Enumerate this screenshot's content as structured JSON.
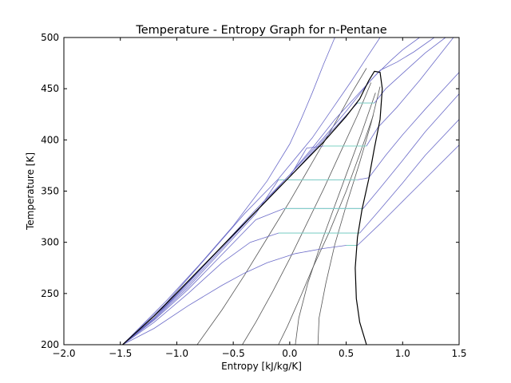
{
  "chart_data": {
    "type": "line",
    "title": "Temperature - Entropy Graph for n-Pentane",
    "xlabel": "Entropy [kJ/kg/K]",
    "ylabel": "Temperature [K]",
    "xlim": [
      -2.0,
      1.5
    ],
    "ylim": [
      200,
      500
    ],
    "xticks": [
      -2.0,
      -1.5,
      -1.0,
      -0.5,
      0.0,
      0.5,
      1.0,
      1.5
    ],
    "xtick_labels": [
      "−2.0",
      "−1.5",
      "−1.0",
      "−0.5",
      "0.0",
      "0.5",
      "1.0",
      "1.5"
    ],
    "yticks": [
      200,
      250,
      300,
      350,
      400,
      450,
      500
    ],
    "ytick_labels": [
      "200",
      "250",
      "300",
      "350",
      "400",
      "450",
      "500"
    ],
    "grid": false,
    "colors": {
      "saturation": "#000000",
      "isobar": "#6b6bc8",
      "isobar_two_phase": "#7fd3c6",
      "isochore": "#555555"
    },
    "saturation_dome": {
      "x": [
        -1.48,
        -1.2,
        -0.9,
        -0.6,
        -0.3,
        0.0,
        0.3,
        0.5,
        0.62,
        0.7,
        0.75,
        0.8,
        0.82,
        0.8,
        0.75,
        0.7,
        0.64,
        0.6,
        0.58,
        0.59,
        0.62,
        0.68
      ],
      "y": [
        200,
        228,
        262,
        296,
        330,
        364,
        398,
        423,
        440,
        458,
        467,
        466,
        450,
        420,
        392,
        362,
        332,
        305,
        275,
        245,
        222,
        200
      ]
    },
    "isobars": [
      {
        "x": [
          -1.48,
          -1.2,
          -0.9,
          -0.6,
          -0.4,
          -0.2,
          0.05,
          0.3,
          0.5,
          0.6,
          0.8,
          1.0,
          1.2,
          1.5
        ],
        "y": [
          200,
          216,
          238,
          258,
          270,
          280,
          289,
          294,
          297,
          297,
          318,
          340,
          362,
          395
        ]
      },
      {
        "x": [
          -1.48,
          -1.2,
          -0.9,
          -0.6,
          -0.35,
          -0.1,
          0.1,
          0.3,
          0.5,
          0.62,
          0.8,
          1.0,
          1.2,
          1.5
        ],
        "y": [
          200,
          222,
          250,
          280,
          300,
          309,
          309,
          309,
          309,
          309,
          332,
          358,
          385,
          420
        ]
      },
      {
        "x": [
          -1.48,
          -1.2,
          -0.9,
          -0.6,
          -0.3,
          -0.05,
          0.1,
          0.3,
          0.5,
          0.65,
          0.8,
          1.0,
          1.2,
          1.5
        ],
        "y": [
          200,
          224,
          254,
          288,
          322,
          333,
          333,
          333,
          333,
          333,
          353,
          380,
          408,
          445
        ]
      },
      {
        "x": [
          -1.48,
          -1.2,
          -0.9,
          -0.6,
          -0.3,
          -0.1,
          0.2,
          0.4,
          0.6,
          0.7,
          0.85,
          1.0,
          1.2,
          1.5
        ],
        "y": [
          200,
          225,
          256,
          292,
          328,
          361,
          361,
          361,
          361,
          363,
          385,
          405,
          430,
          466
        ]
      },
      {
        "x": [
          -1.48,
          -1.2,
          -0.9,
          -0.6,
          -0.3,
          0.0,
          0.15,
          0.3,
          0.5,
          0.68,
          0.78,
          0.95,
          1.15,
          1.45
        ],
        "y": [
          200,
          226,
          258,
          294,
          330,
          364,
          392,
          394,
          394,
          394,
          412,
          432,
          458,
          500
        ]
      },
      {
        "x": [
          -1.48,
          -1.2,
          -0.9,
          -0.6,
          -0.3,
          0.0,
          0.3,
          0.4,
          0.6,
          0.75,
          0.85,
          1.0,
          1.2,
          1.38
        ],
        "y": [
          200,
          226,
          260,
          296,
          330,
          364,
          400,
          412,
          436,
          436,
          450,
          465,
          485,
          500
        ]
      },
      {
        "x": [
          -1.48,
          -1.2,
          -0.9,
          -0.6,
          -0.3,
          0.0,
          0.3,
          0.5,
          0.7,
          0.8,
          0.95,
          1.1,
          1.28
        ],
        "y": [
          200,
          226,
          260,
          296,
          332,
          366,
          402,
          428,
          456,
          468,
          476,
          486,
          500
        ]
      },
      {
        "x": [
          -1.48,
          -1.1,
          -0.7,
          -0.3,
          0.0,
          0.2,
          0.4,
          0.6,
          0.75,
          0.9,
          1.0,
          1.15
        ],
        "y": [
          200,
          238,
          284,
          330,
          366,
          392,
          420,
          444,
          462,
          478,
          488,
          500
        ]
      },
      {
        "x": [
          -1.48,
          -1.1,
          -0.7,
          -0.4,
          -0.1,
          0.2,
          0.4,
          0.55,
          0.68,
          0.8
        ],
        "y": [
          200,
          240,
          290,
          328,
          362,
          402,
          434,
          458,
          480,
          500
        ]
      },
      {
        "x": [
          -1.48,
          -1.1,
          -0.8,
          -0.5,
          -0.2,
          0.0,
          0.1,
          0.2,
          0.3,
          0.4
        ],
        "y": [
          200,
          242,
          278,
          316,
          360,
          396,
          420,
          446,
          474,
          500
        ]
      }
    ],
    "isochores": [
      {
        "x": [
          -0.82,
          -0.6,
          -0.4,
          -0.2,
          0.0,
          0.2,
          0.4,
          0.55,
          0.68
        ],
        "y": [
          200,
          234,
          268,
          304,
          340,
          378,
          416,
          446,
          470
        ]
      },
      {
        "x": [
          -0.42,
          -0.3,
          -0.15,
          0.0,
          0.15,
          0.3,
          0.45,
          0.6,
          0.72
        ],
        "y": [
          200,
          222,
          252,
          284,
          318,
          352,
          388,
          424,
          456
        ]
      },
      {
        "x": [
          -0.1,
          -0.02,
          0.1,
          0.2,
          0.35,
          0.5,
          0.62,
          0.74
        ],
        "y": [
          200,
          218,
          248,
          274,
          310,
          350,
          386,
          424
        ]
      },
      {
        "x": [
          0.05,
          0.08,
          0.16,
          0.28,
          0.4,
          0.52,
          0.64,
          0.76
        ],
        "y": [
          200,
          226,
          260,
          300,
          336,
          372,
          408,
          446
        ]
      },
      {
        "x": [
          0.25,
          0.26,
          0.32,
          0.4,
          0.5,
          0.62,
          0.72,
          0.8
        ],
        "y": [
          200,
          226,
          260,
          298,
          336,
          378,
          416,
          452
        ]
      }
    ]
  }
}
